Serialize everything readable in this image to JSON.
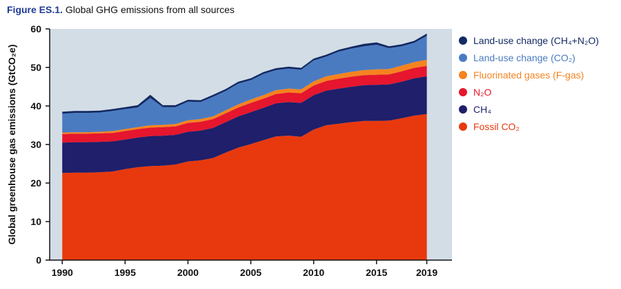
{
  "title": {
    "prefix": "Figure ES.1.",
    "text": "Global GHG emissions from all sources"
  },
  "chart_data": {
    "type": "area",
    "stacked": true,
    "ylabel": "Global greenhouse gas emissions (GtCO₂e)",
    "xlabel": "",
    "ylim": [
      0,
      60
    ],
    "xlim": [
      1989,
      2021
    ],
    "yticks": [
      0,
      10,
      20,
      30,
      40,
      50,
      60
    ],
    "xticks": [
      1990,
      1995,
      2000,
      2005,
      2010,
      2015,
      2019
    ],
    "highlight_xtick": 2019,
    "grid": false,
    "background_color": "#d3dde6",
    "legend_position": "right",
    "x": [
      1990,
      1991,
      1992,
      1993,
      1994,
      1995,
      1996,
      1997,
      1998,
      1999,
      2000,
      2001,
      2002,
      2003,
      2004,
      2005,
      2006,
      2007,
      2008,
      2009,
      2010,
      2011,
      2012,
      2013,
      2014,
      2015,
      2016,
      2017,
      2018,
      2019
    ],
    "series": [
      {
        "name": "Fossil CO₂",
        "color": "#e8390e",
        "values": [
          22.6,
          22.7,
          22.7,
          22.8,
          23.0,
          23.6,
          24.1,
          24.4,
          24.5,
          24.8,
          25.6,
          25.9,
          26.5,
          27.9,
          29.2,
          30.1,
          31.1,
          32.1,
          32.3,
          32.0,
          33.9,
          35.0,
          35.4,
          35.8,
          36.1,
          36.1,
          36.2,
          36.8,
          37.5,
          37.9
        ]
      },
      {
        "name": "CH₄",
        "color": "#1f1f6b",
        "values": [
          7.9,
          7.9,
          7.9,
          7.9,
          7.8,
          7.7,
          7.7,
          7.8,
          7.8,
          7.7,
          7.7,
          7.7,
          7.8,
          7.9,
          8.1,
          8.3,
          8.4,
          8.6,
          8.7,
          8.8,
          8.9,
          9.0,
          9.1,
          9.2,
          9.3,
          9.4,
          9.4,
          9.5,
          9.7,
          9.8
        ]
      },
      {
        "name": "N₂O",
        "color": "#e5162d",
        "values": [
          2.2,
          2.2,
          2.2,
          2.2,
          2.2,
          2.2,
          2.2,
          2.2,
          2.2,
          2.2,
          2.3,
          2.3,
          2.3,
          2.3,
          2.3,
          2.4,
          2.4,
          2.4,
          2.5,
          2.5,
          2.5,
          2.5,
          2.6,
          2.6,
          2.6,
          2.6,
          2.6,
          2.7,
          2.7,
          2.7
        ]
      },
      {
        "name": "Fluorinated gases (F-gas)",
        "color": "#f5831f",
        "values": [
          0.4,
          0.4,
          0.4,
          0.4,
          0.5,
          0.5,
          0.5,
          0.6,
          0.6,
          0.6,
          0.7,
          0.7,
          0.7,
          0.8,
          0.8,
          0.9,
          0.9,
          1.0,
          1.0,
          1.0,
          1.1,
          1.2,
          1.2,
          1.3,
          1.3,
          1.4,
          1.4,
          1.5,
          1.5,
          1.6
        ]
      },
      {
        "name": "Land-use change (CO₂)",
        "color": "#4a7bc1",
        "values": [
          4.9,
          5.0,
          5.0,
          5.0,
          5.2,
          5.2,
          5.1,
          7.1,
          4.6,
          4.4,
          4.8,
          4.4,
          5.1,
          5.0,
          5.4,
          5.0,
          5.5,
          5.2,
          5.2,
          5.1,
          5.4,
          5.1,
          5.8,
          6.0,
          6.2,
          6.4,
          5.4,
          5.0,
          5.0,
          6.2
        ]
      },
      {
        "name": "Land-use change (CH₄+N₂O)",
        "color": "#132a63",
        "values": [
          0.5,
          0.5,
          0.5,
          0.5,
          0.5,
          0.5,
          0.6,
          0.8,
          0.5,
          0.5,
          0.5,
          0.5,
          0.5,
          0.5,
          0.5,
          0.5,
          0.5,
          0.5,
          0.5,
          0.5,
          0.5,
          0.5,
          0.5,
          0.5,
          0.6,
          0.6,
          0.5,
          0.5,
          0.5,
          0.6
        ]
      }
    ]
  }
}
